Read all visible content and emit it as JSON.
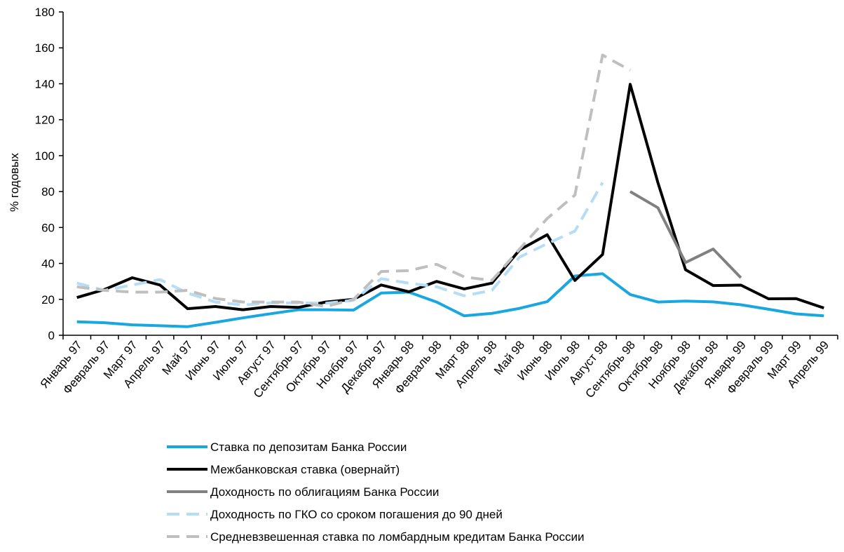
{
  "chart_data": {
    "type": "line",
    "ylabel": "% годовых",
    "ylim": [
      0,
      180
    ],
    "yticks": [
      0,
      20,
      40,
      60,
      80,
      100,
      120,
      140,
      160,
      180
    ],
    "categories": [
      "Январь 97",
      "Февраль 97",
      "Март 97",
      "Апрель 97",
      "Май 97",
      "Июнь 97",
      "Июль 97",
      "Август 97",
      "Сентябрь 97",
      "Октябрь 97",
      "Ноябрь 97",
      "Декабрь 97",
      "Январь 98",
      "Февраль 98",
      "Март 98",
      "Апрель 98",
      "Май 98",
      "Июнь 98",
      "Июль 98",
      "Август 98",
      "Сентябрь 98",
      "Октябрь 98",
      "Ноябрь 98",
      "Декабрь 98",
      "Январь 99",
      "Февраль 99",
      "Март 99",
      "Апрель 99"
    ],
    "grid": false,
    "legend_position": "bottom",
    "series": [
      {
        "name": "Ставка по депозитам Банка России",
        "color": "#1aa7e0",
        "style": "solid",
        "values": [
          7.5,
          7,
          5.8,
          5.3,
          4.8,
          7.2,
          9.7,
          12,
          14.2,
          14.2,
          14,
          23.5,
          24,
          18.5,
          10.8,
          12.2,
          15,
          18.7,
          33,
          34.3,
          22.7,
          18.5,
          19,
          18.6,
          17,
          14.5,
          11.9,
          10.8
        ]
      },
      {
        "name": "Межбанковская ставка (овернайт)",
        "color": "#000000",
        "style": "solid",
        "values": [
          21,
          25.5,
          32,
          28,
          14.8,
          16,
          14.2,
          16,
          15.5,
          18.5,
          20,
          28,
          24.2,
          30,
          25.8,
          29,
          47.5,
          56,
          30.5,
          45,
          139.7,
          85,
          36.5,
          27.7,
          27.9,
          20.3,
          20.4,
          15.2
        ]
      },
      {
        "name": "Доходность по облигациям Банка России",
        "color": "#808080",
        "style": "solid",
        "values": [
          null,
          null,
          null,
          null,
          null,
          null,
          null,
          null,
          null,
          null,
          null,
          null,
          null,
          null,
          null,
          null,
          null,
          null,
          null,
          null,
          80,
          71,
          40.5,
          48,
          32,
          null,
          null,
          null
        ]
      },
      {
        "name": "Доходность по ГКО со сроком погашения до 90 дней",
        "color": "#b5ddf5",
        "style": "dashed",
        "values": [
          29,
          25,
          28,
          31,
          23.5,
          18.5,
          16.8,
          18,
          18,
          17.8,
          19.5,
          31.5,
          29,
          27,
          22,
          25,
          43.5,
          51,
          58,
          85,
          null,
          null,
          null,
          null,
          null,
          null,
          null,
          null
        ]
      },
      {
        "name": "Средневзвешенная ставка по ломбардным кредитам Банка России",
        "color": "#bfbfbf",
        "style": "dashed",
        "values": [
          27,
          25,
          24,
          24,
          25,
          20.5,
          18.5,
          18.5,
          18.5,
          16,
          20,
          35.5,
          36,
          39.5,
          32.5,
          30.5,
          48,
          65,
          78,
          156,
          147.5,
          null,
          null,
          null,
          null,
          null,
          null,
          null
        ]
      }
    ]
  }
}
